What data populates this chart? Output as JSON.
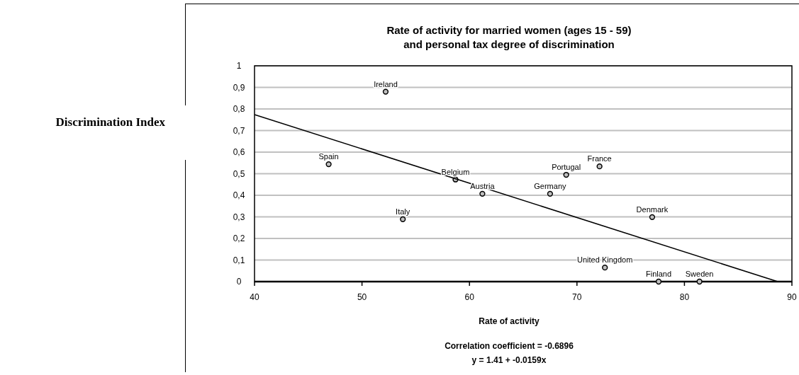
{
  "chart_data": {
    "type": "scatter",
    "title": "Rate of activity for married women (ages 15 - 59)\nand personal tax degree of discrimination",
    "xlabel": "Rate of activity",
    "xlim": [
      40,
      90
    ],
    "xticks": [
      40,
      50,
      60,
      70,
      80,
      90
    ],
    "ylim": [
      0,
      1
    ],
    "yticks": [
      0,
      {
        "value": 0.1,
        "label": "0,1"
      },
      {
        "value": 0.2,
        "label": "0,2"
      },
      {
        "value": 0.3,
        "label": "0,3"
      },
      {
        "value": 0.4,
        "label": "0,4"
      },
      {
        "value": 0.5,
        "label": "0,5"
      },
      {
        "value": 0.6,
        "label": "0,6"
      },
      {
        "value": 0.7,
        "label": "0,7"
      },
      {
        "value": 0.8,
        "label": "0,8"
      },
      {
        "value": 0.9,
        "label": "0,9"
      },
      1
    ],
    "grid": "y",
    "legend": false,
    "marker": "circle",
    "series": [
      {
        "color": "#c0c0c0",
        "x": [
          52.2,
          46.9,
          58.7,
          61.2,
          53.8,
          67.5,
          69.0,
          72.1,
          77.0,
          72.6,
          77.6,
          81.4
        ],
        "values": [
          0.88,
          0.544,
          0.473,
          0.407,
          0.289,
          0.407,
          0.495,
          0.534,
          0.299,
          0.065,
          0,
          0
        ]
      },
      {
        "type": "line",
        "color": "#000000",
        "marker": "none",
        "x": [
          40,
          88.68
        ],
        "values": [
          0.774,
          0
        ]
      }
    ],
    "annotations": [
      {
        "text": "Ireland",
        "x": 52.2,
        "y": 0.88
      },
      {
        "text": "Spain",
        "x": 46.9,
        "y": 0.544
      },
      {
        "text": "Belgium",
        "x": 58.7,
        "y": 0.473
      },
      {
        "text": "Austria",
        "x": 61.2,
        "y": 0.407
      },
      {
        "text": "Italy",
        "x": 53.8,
        "y": 0.289
      },
      {
        "text": "Germany",
        "x": 67.5,
        "y": 0.407
      },
      {
        "text": "Portugal",
        "x": 69.0,
        "y": 0.495
      },
      {
        "text": "France",
        "x": 72.1,
        "y": 0.534
      },
      {
        "text": "Denmark",
        "x": 77.0,
        "y": 0.299
      },
      {
        "text": "United Kingdom",
        "x": 72.6,
        "y": 0.065
      },
      {
        "text": "Finland",
        "x": 77.6,
        "y": 0
      },
      {
        "text": "Sweden",
        "x": 81.4,
        "y": 0
      },
      "Discrimination Index",
      "Correlation coefficient = -0.6896",
      "y = 1.41 + -0.0159x"
    ]
  }
}
